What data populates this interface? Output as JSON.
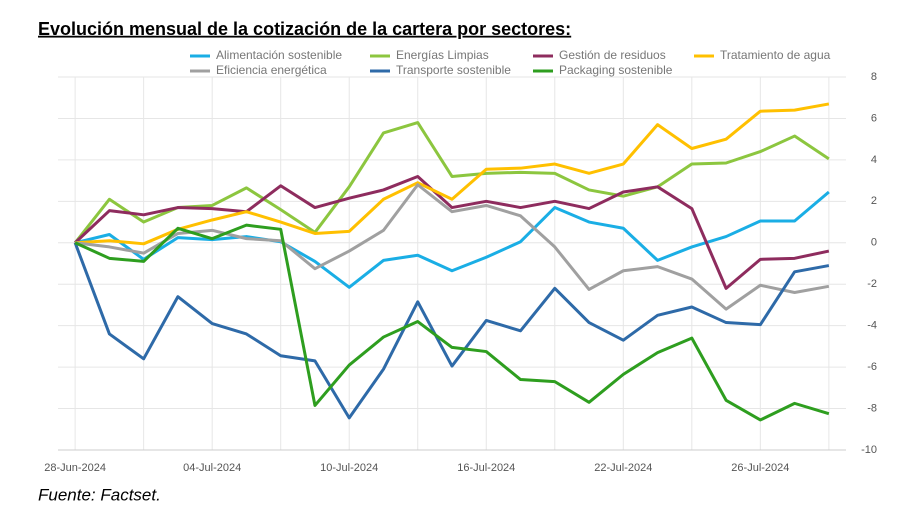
{
  "chart_data": {
    "type": "line",
    "title": "Evolución mensual de la cotización de la cartera por sectores:",
    "source": "Fuente: Factset.",
    "categories": [
      "28-Jun-2024",
      null,
      null,
      null,
      "04-Jul-2024",
      null,
      null,
      null,
      "10-Jul-2024",
      null,
      null,
      null,
      "16-Jul-2024",
      null,
      null,
      null,
      "22-Jul-2024",
      null,
      null,
      null,
      "26-Jul-2024",
      null,
      null
    ],
    "series": [
      {
        "name": "Alimentación sostenible",
        "color": "#1aaee5",
        "values": [
          0,
          0.4,
          -0.8,
          0.25,
          0.15,
          0.3,
          0.05,
          -0.9,
          -2.15,
          -0.85,
          -0.6,
          -1.35,
          -0.7,
          0.05,
          1.7,
          1.0,
          0.7,
          -0.85,
          -0.2,
          0.3,
          1.05,
          1.05,
          2.45
        ]
      },
      {
        "name": "Energías Limpias",
        "color": "#8cc63f",
        "values": [
          0,
          2.1,
          1.0,
          1.7,
          1.8,
          2.65,
          1.6,
          0.5,
          2.7,
          5.3,
          5.8,
          3.2,
          3.35,
          3.4,
          3.35,
          2.55,
          2.25,
          2.7,
          3.8,
          3.85,
          4.4,
          5.15,
          4.05
        ]
      },
      {
        "name": "Gestión de residuos",
        "color": "#8e2c5e",
        "values": [
          0,
          1.55,
          1.35,
          1.7,
          1.65,
          1.5,
          2.75,
          1.7,
          2.15,
          2.55,
          3.2,
          1.7,
          2.0,
          1.7,
          2.0,
          1.65,
          2.45,
          2.7,
          1.65,
          -2.2,
          -0.8,
          -0.75,
          -0.4
        ]
      },
      {
        "name": "Tratamiento de agua",
        "color": "#ffc000",
        "values": [
          0,
          0.1,
          -0.05,
          0.65,
          1.1,
          1.5,
          1.0,
          0.45,
          0.55,
          2.1,
          2.9,
          2.1,
          3.55,
          3.6,
          3.8,
          3.35,
          3.8,
          5.7,
          4.55,
          5.0,
          6.35,
          6.4,
          6.7
        ]
      },
      {
        "name": "Eficiencia energética",
        "color": "#a0a0a0",
        "values": [
          0,
          -0.2,
          -0.5,
          0.45,
          0.6,
          0.2,
          0.1,
          -1.25,
          -0.4,
          0.6,
          2.8,
          1.5,
          1.8,
          1.3,
          -0.2,
          -2.25,
          -1.35,
          -1.15,
          -1.75,
          -3.2,
          -2.05,
          -2.4,
          -2.1
        ]
      },
      {
        "name": "Transporte sostenible",
        "color": "#2e6aa8",
        "values": [
          0,
          -4.4,
          -5.6,
          -2.6,
          -3.9,
          -4.4,
          -5.45,
          -5.7,
          -8.45,
          -6.1,
          -2.85,
          -5.95,
          -3.75,
          -4.25,
          -2.2,
          -3.85,
          -4.7,
          -3.5,
          -3.1,
          -3.85,
          -3.95,
          -1.4,
          -1.1
        ]
      },
      {
        "name": "Packaging sostenible",
        "color": "#2e9e1f",
        "values": [
          0,
          -0.75,
          -0.9,
          0.7,
          0.2,
          0.85,
          0.65,
          -7.85,
          -5.9,
          -4.55,
          -3.8,
          -5.05,
          -5.25,
          -6.6,
          -6.7,
          -7.7,
          -6.35,
          -5.3,
          -4.6,
          -7.6,
          -8.55,
          -7.75,
          -8.25
        ]
      }
    ],
    "ylim": [
      -10,
      8
    ],
    "yticks": [
      -10,
      -8,
      -6,
      -4,
      -2,
      0,
      2,
      4,
      6,
      8
    ],
    "grid": true
  }
}
